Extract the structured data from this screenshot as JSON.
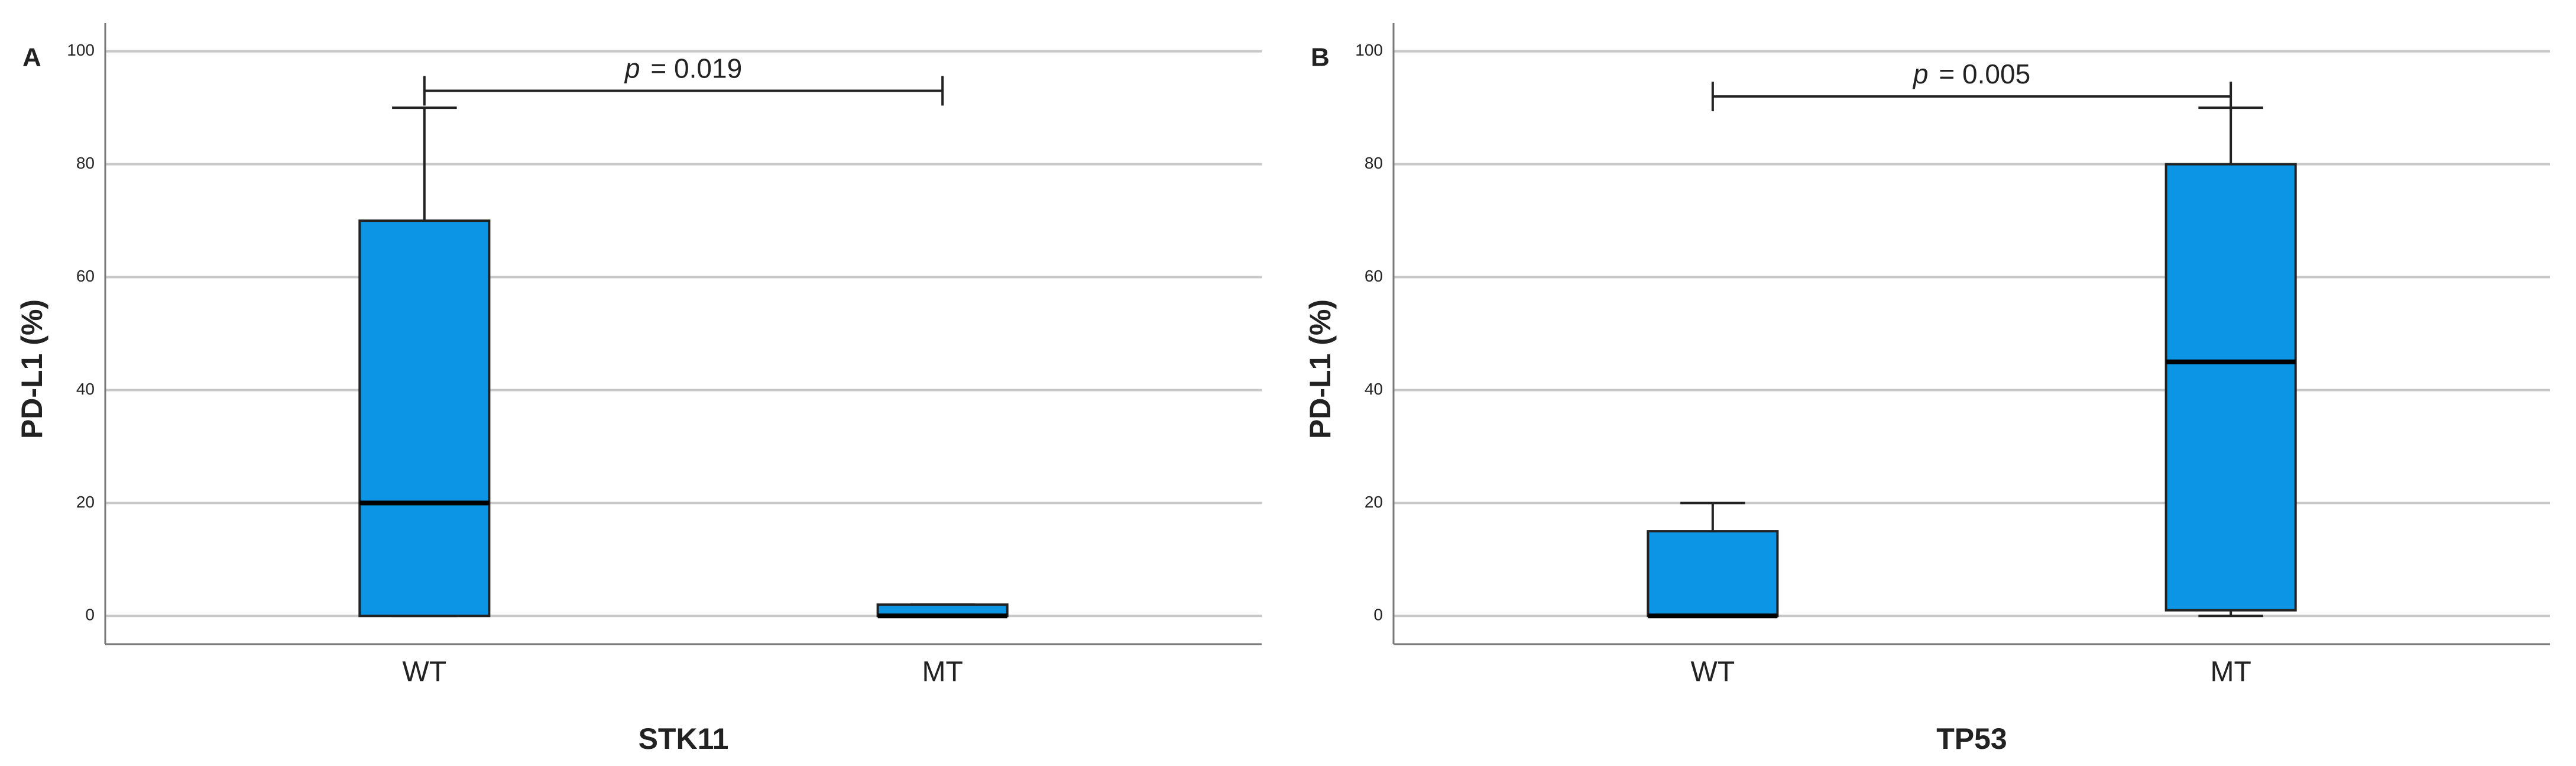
{
  "chart_data": [
    {
      "type": "box",
      "panel": "A",
      "ylabel": "PD-L1 (%)",
      "xlabel": "STK11",
      "color": "#0b95e4",
      "categories": [
        "WT",
        "MT"
      ],
      "boxes": [
        {
          "min": 0,
          "q1": 0,
          "median": 20,
          "q3": 70,
          "max": 90
        },
        {
          "min": 0,
          "q1": 0,
          "median": 0,
          "q3": 2,
          "max": 2
        }
      ],
      "ylim": [
        -5,
        105
      ],
      "yticks": [
        0,
        20,
        40,
        60,
        80,
        100
      ],
      "grid": true,
      "annotation": {
        "label": "p",
        "text": "= 0.019",
        "y": 93
      }
    },
    {
      "type": "box",
      "panel": "B",
      "ylabel": "PD-L1 (%)",
      "xlabel": "TP53",
      "color": "#0b95e4",
      "categories": [
        "WT",
        "MT"
      ],
      "boxes": [
        {
          "min": 0,
          "q1": 0,
          "median": 0,
          "q3": 15,
          "max": 20
        },
        {
          "min": 0,
          "q1": 1,
          "median": 45,
          "q3": 80,
          "max": 90
        }
      ],
      "ylim": [
        -5,
        105
      ],
      "yticks": [
        0,
        20,
        40,
        60,
        80,
        100
      ],
      "grid": true,
      "annotation": {
        "label": "p",
        "text": "= 0.005",
        "y": 92
      }
    }
  ]
}
